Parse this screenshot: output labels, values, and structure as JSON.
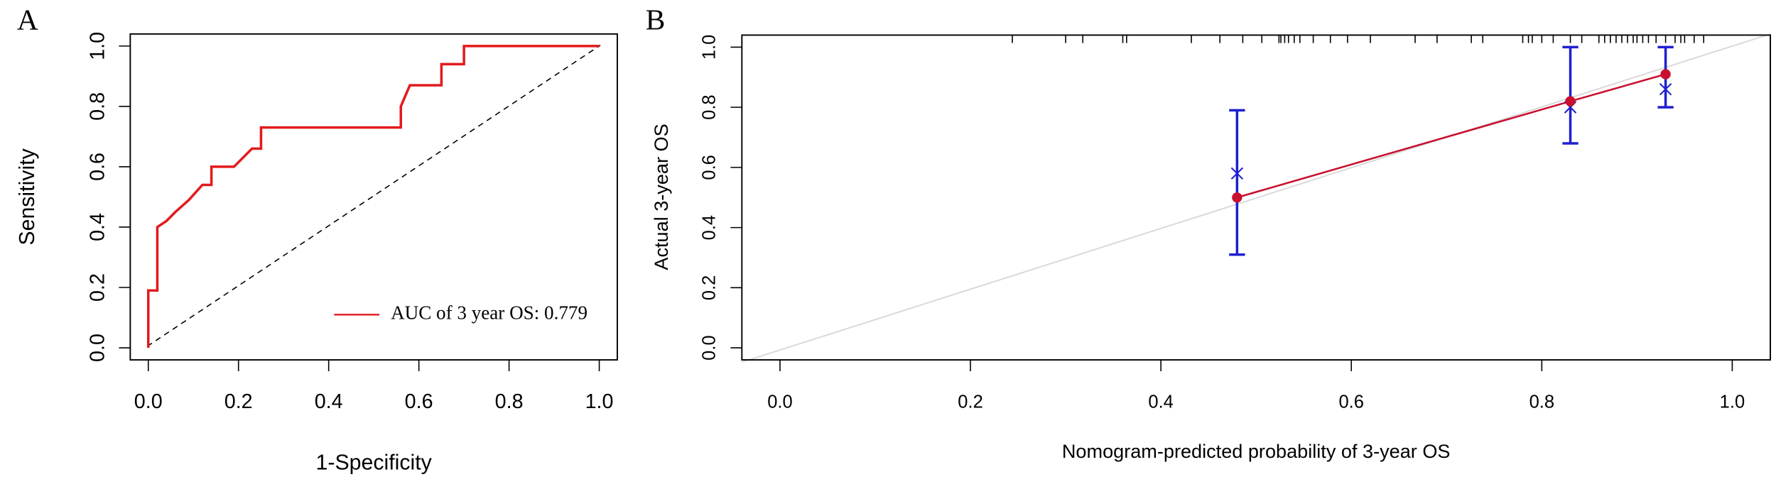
{
  "chart_data": [
    {
      "type": "roc",
      "panel_label": "A",
      "x_label": "1-Specificity",
      "y_label": "Sensitivity",
      "xlim": [
        -0.04,
        1.04
      ],
      "ylim": [
        -0.04,
        1.04
      ],
      "xticks": [
        {
          "value": 0,
          "label": "0.0"
        },
        0.2,
        0.4,
        0.6,
        0.8,
        {
          "value": 1,
          "label": "1.0"
        }
      ],
      "yticks": [
        {
          "value": 0,
          "label": "0.0"
        },
        0.2,
        0.4,
        0.6,
        0.8,
        {
          "value": 1,
          "label": "1.0"
        }
      ],
      "legend": "bottom-right",
      "x": [
        0,
        0,
        0.02,
        0.02,
        0.04,
        0.06,
        0.09,
        0.12,
        0.14,
        0.14,
        0.19,
        0.23,
        0.25,
        0.25,
        0.56,
        0.56,
        0.58,
        0.65,
        0.65,
        0.7,
        0.7,
        1.0
      ],
      "series": [
        {
          "name": "AUC of 3 year OS: 0.779",
          "color": "#e31a1c",
          "values": [
            0,
            0.19,
            0.19,
            0.4,
            0.42,
            0.45,
            0.49,
            0.54,
            0.54,
            0.6,
            0.6,
            0.66,
            0.66,
            0.73,
            0.73,
            0.8,
            0.87,
            0.87,
            0.94,
            0.94,
            1.0,
            1.0
          ]
        }
      ]
    },
    {
      "type": "calibration",
      "panel_label": "B",
      "x_label": "Nomogram-predicted probability of 3-year OS",
      "y_label": "Actual 3-year OS",
      "xlim": [
        -0.04,
        1.04
      ],
      "ylim": [
        -0.04,
        1.04
      ],
      "xticks": [
        {
          "value": 0,
          "label": "0.0"
        },
        0.2,
        0.4,
        0.6,
        0.8,
        {
          "value": 1,
          "label": "1.0"
        }
      ],
      "yticks": [
        {
          "value": 0,
          "label": "0.0"
        },
        0.2,
        0.4,
        0.6,
        0.8,
        {
          "value": 1,
          "label": "1.0"
        }
      ],
      "x": [
        0.48,
        0.83,
        0.93
      ],
      "observed": [
        0.5,
        0.82,
        0.91
      ],
      "observed_color": "#c8102e",
      "ci_lower": [
        0.31,
        0.68,
        0.8
      ],
      "ci_upper": [
        0.79,
        1.0,
        1.0
      ],
      "ci_color": "#1f1fd0",
      "bias_corrected": [
        0.58,
        0.8,
        0.86
      ],
      "rug": [
        0.244,
        0.3,
        0.318,
        0.36,
        0.364,
        0.432,
        0.462,
        0.486,
        0.506,
        0.524,
        0.526,
        0.53,
        0.534,
        0.54,
        0.546,
        0.56,
        0.578,
        0.596,
        0.62,
        0.667,
        0.69,
        0.726,
        0.738,
        0.78,
        0.786,
        0.79,
        0.8,
        0.812,
        0.83,
        0.842,
        0.86,
        0.866,
        0.872,
        0.878,
        0.884,
        0.89,
        0.896,
        0.9,
        0.906,
        0.912,
        0.92,
        0.93,
        0.94,
        0.946,
        0.95,
        0.96,
        0.97
      ]
    }
  ]
}
